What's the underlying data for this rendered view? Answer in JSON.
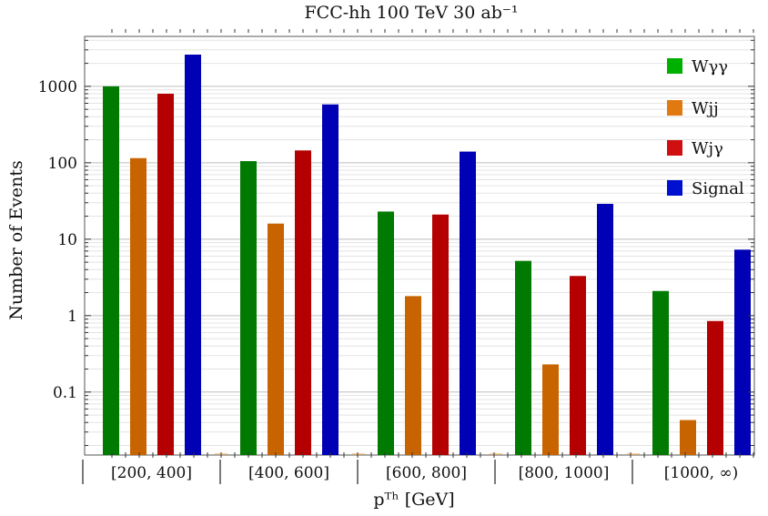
{
  "chart_data": {
    "type": "bar",
    "title": "FCC-hh  100 TeV  30 ab⁻¹",
    "xlabel": "pᵀʰ [GeV]",
    "ylabel": "Number of Events",
    "yscale": "log",
    "ylim": [
      0.015,
      4500
    ],
    "yticks": [
      0.1,
      1,
      10,
      100,
      1000
    ],
    "ytick_labels": [
      "0.1",
      "1",
      "10",
      "100",
      "1000"
    ],
    "categories": [
      "[200, 400]",
      "[400, 600]",
      "[600, 800]",
      "[800, 1000]",
      "[1000, ∞)"
    ],
    "series": [
      {
        "name": "Wγγ",
        "color": "#007a00",
        "values": [
          1000,
          105,
          23,
          5.2,
          2.1
        ]
      },
      {
        "name": "Wjj",
        "color": "#c86400",
        "values": [
          115,
          16,
          1.8,
          0.23,
          0.043
        ]
      },
      {
        "name": "Wjγ",
        "color": "#b40000",
        "values": [
          800,
          145,
          21,
          3.3,
          0.85
        ]
      },
      {
        "name": "Signal",
        "color": "#0000b4",
        "values": [
          2600,
          580,
          140,
          29,
          7.3
        ]
      }
    ],
    "legend": {
      "placement": "top-right",
      "entries": [
        {
          "label": "Wγγ",
          "color": "#00b000"
        },
        {
          "label": "Wjj",
          "color": "#e07a10"
        },
        {
          "label": "Wjγ",
          "color": "#d01010"
        },
        {
          "label": "Signal",
          "color": "#0010d0"
        }
      ]
    },
    "grid": true
  }
}
